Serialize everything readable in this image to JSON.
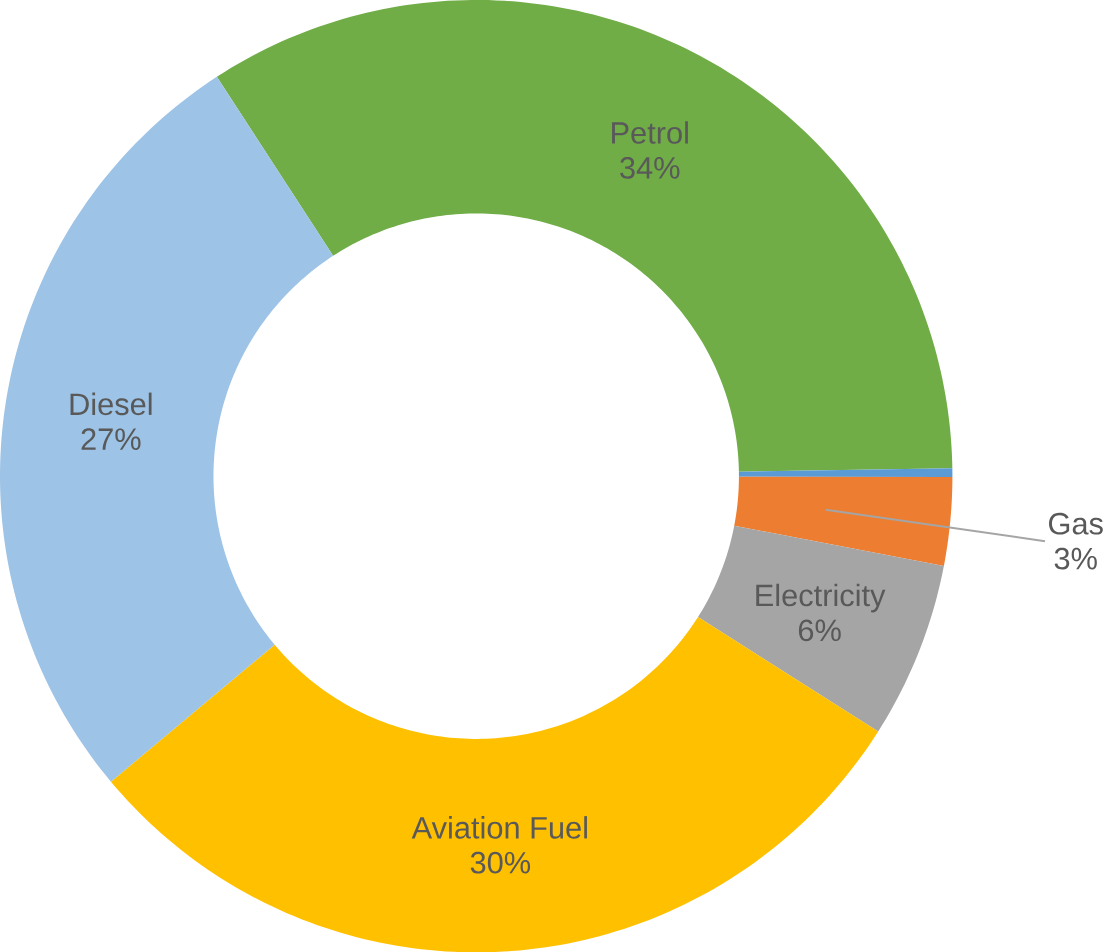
{
  "chart_data": {
    "type": "donut",
    "categories": [
      "Petrol",
      null,
      "Gas",
      "Electricity",
      "Aviation Fuel",
      "Diesel"
    ],
    "values": [
      34,
      0.3,
      3,
      6,
      30,
      27
    ],
    "value_labels": [
      "34%",
      null,
      "3%",
      "6%",
      "30%",
      "27%"
    ],
    "colors": [
      "#70ad47",
      "#5b9bd5",
      "#ed7d31",
      "#a5a5a5",
      "#ffc000",
      "#9dc3e6"
    ]
  }
}
